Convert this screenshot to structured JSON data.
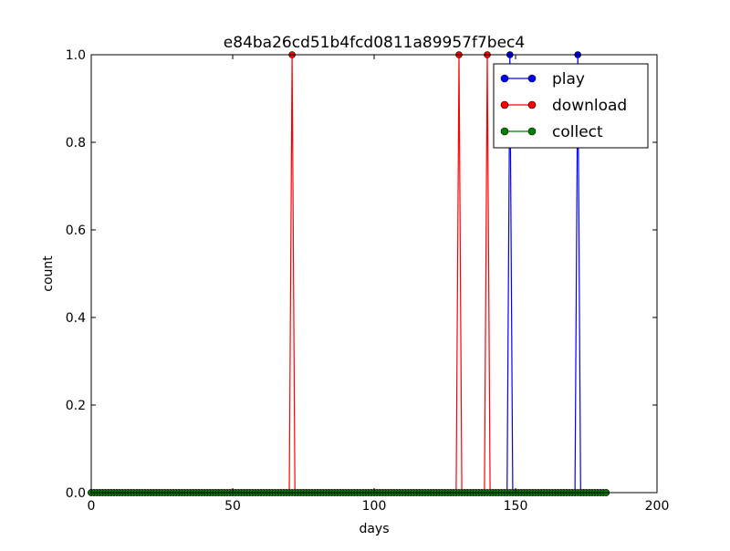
{
  "chart_data": {
    "type": "line",
    "title": "e84ba26cd51b4fcd0811a89957f7bec4",
    "xlabel": "days",
    "ylabel": "count",
    "xlim": [
      0,
      200
    ],
    "ylim": [
      0.0,
      1.0
    ],
    "x_ticks": [
      "0",
      "50",
      "100",
      "150",
      "200"
    ],
    "y_ticks": [
      "0.0",
      "0.2",
      "0.4",
      "0.6",
      "0.8",
      "1.0"
    ],
    "x_range": [
      0,
      182
    ],
    "grid": false,
    "legend_position": "top-right",
    "series": [
      {
        "name": "play",
        "color": "#0000ff",
        "spikes": [
          148,
          172
        ]
      },
      {
        "name": "download",
        "color": "#ff0000",
        "spikes": [
          71,
          130,
          140
        ]
      },
      {
        "name": "collect",
        "color": "#008000",
        "spikes": []
      }
    ]
  }
}
